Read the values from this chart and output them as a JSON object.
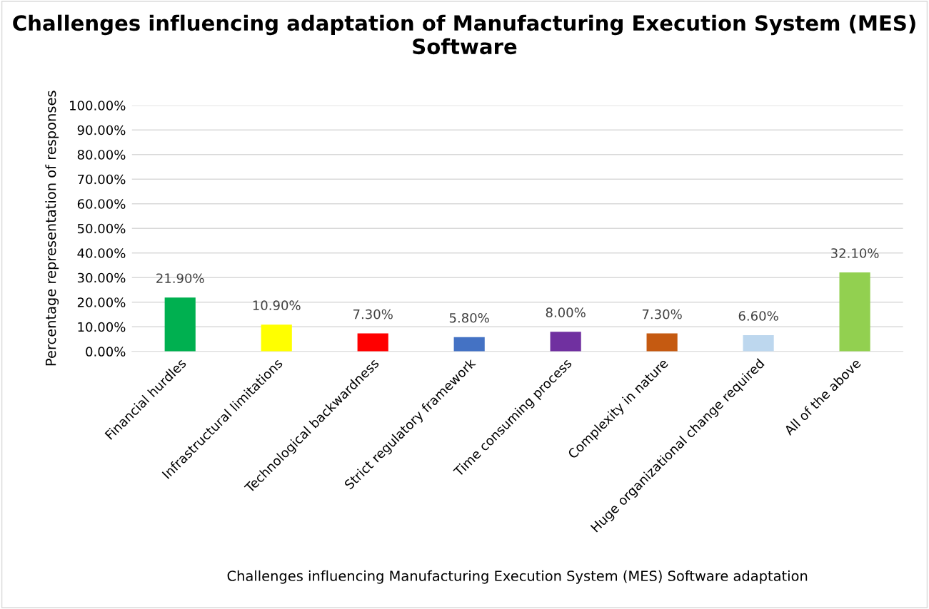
{
  "chart_data": {
    "type": "bar",
    "title": "Challenges influencing adaptation of Manufacturing Execution System (MES) Software",
    "xlabel": "Challenges influencing Manufacturing Execution System (MES) Software adaptation",
    "ylabel": "Percentage representation of responses",
    "categories": [
      "Financial hurdles",
      "Infrastructural limitations",
      "Technological backwardness",
      "Strict regulatory framework",
      "Time consuming process",
      "Complexity in nature",
      "Huge organizational change required",
      "All of the above"
    ],
    "values": [
      21.9,
      10.9,
      7.3,
      5.8,
      8.0,
      7.3,
      6.6,
      32.1
    ],
    "value_labels": [
      "21.90%",
      "10.90%",
      "7.30%",
      "5.80%",
      "8.00%",
      "7.30%",
      "6.60%",
      "32.10%"
    ],
    "colors": [
      "#00b050",
      "#ffff00",
      "#ff0000",
      "#4472c4",
      "#7030a0",
      "#c55a11",
      "#bdd7ee",
      "#92d050"
    ],
    "ylim": [
      0,
      100
    ],
    "yticks": [
      {
        "value": 0,
        "label": "0.00%"
      },
      {
        "value": 10,
        "label": "10.00%"
      },
      {
        "value": 20,
        "label": "20.00%"
      },
      {
        "value": 30,
        "label": "30.00%"
      },
      {
        "value": 40,
        "label": "40.00%"
      },
      {
        "value": 50,
        "label": "50.00%"
      },
      {
        "value": 60,
        "label": "60.00%"
      },
      {
        "value": 70,
        "label": "70.00%"
      },
      {
        "value": 80,
        "label": "80.00%"
      },
      {
        "value": 90,
        "label": "90.00%"
      },
      {
        "value": 100,
        "label": "100.00%"
      }
    ],
    "grid": "y",
    "legend": false
  }
}
